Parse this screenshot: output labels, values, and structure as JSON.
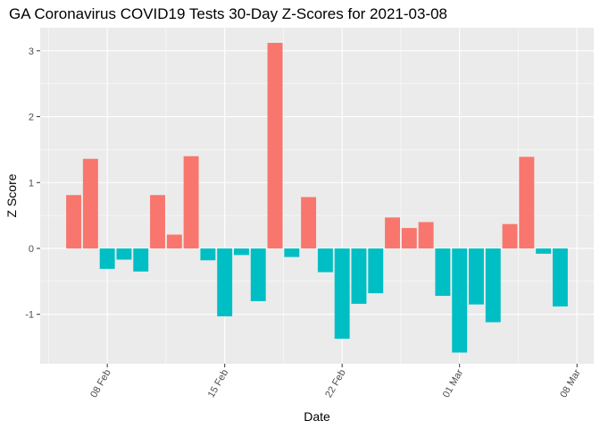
{
  "chart_data": {
    "type": "bar",
    "title": "GA Coronavirus COVID19 Tests 30-Day Z-Scores for 2021-03-08",
    "xlabel": "Date",
    "ylabel": "Z Score",
    "ylim": [
      -1.75,
      3.35
    ],
    "xlim": [
      "2021-02-04",
      "2021-03-09"
    ],
    "y_ticks": [
      -1,
      0,
      1,
      2,
      3
    ],
    "x_ticks": [
      {
        "date": "2021-02-08",
        "label": "08 Feb"
      },
      {
        "date": "2021-02-15",
        "label": "15 Feb"
      },
      {
        "date": "2021-02-22",
        "label": "22 Feb"
      },
      {
        "date": "2021-03-01",
        "label": "01 Mar"
      },
      {
        "date": "2021-03-08",
        "label": "08 Mar"
      }
    ],
    "grid": true,
    "legend": "none",
    "colors": {
      "positive": "#F8766D",
      "negative": "#00BFC4"
    },
    "x": [
      "2021-02-06",
      "2021-02-07",
      "2021-02-08",
      "2021-02-09",
      "2021-02-10",
      "2021-02-11",
      "2021-02-12",
      "2021-02-13",
      "2021-02-14",
      "2021-02-15",
      "2021-02-16",
      "2021-02-17",
      "2021-02-18",
      "2021-02-19",
      "2021-02-20",
      "2021-02-21",
      "2021-02-22",
      "2021-02-23",
      "2021-02-24",
      "2021-02-25",
      "2021-02-26",
      "2021-02-27",
      "2021-02-28",
      "2021-03-01",
      "2021-03-02",
      "2021-03-03",
      "2021-03-04",
      "2021-03-05",
      "2021-03-06",
      "2021-03-07"
    ],
    "values": [
      0.81,
      1.36,
      -0.31,
      -0.17,
      -0.35,
      0.81,
      0.21,
      1.4,
      -0.18,
      -1.03,
      -0.1,
      -0.8,
      3.12,
      -0.13,
      0.78,
      -0.36,
      -1.37,
      -0.84,
      -0.68,
      0.47,
      0.31,
      0.4,
      -0.72,
      -1.58,
      -0.85,
      -1.12,
      0.37,
      1.39,
      -0.08,
      -0.88
    ]
  }
}
